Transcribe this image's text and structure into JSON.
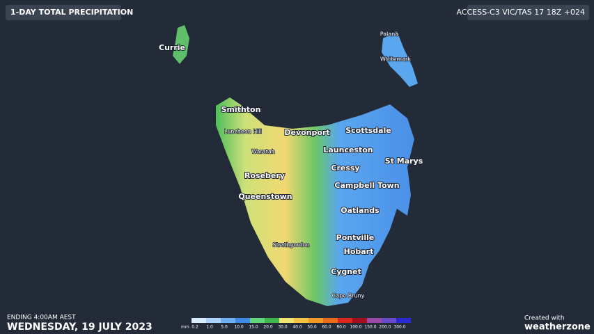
{
  "header": {
    "title": "1-DAY TOTAL PRECIPITATION",
    "model": "ACCESS-C3 VIC/TAS 17 18Z +024"
  },
  "places": [
    {
      "label": "Currie",
      "kind": "major"
    },
    {
      "label": "Palana",
      "kind": "minor"
    },
    {
      "label": "Whitemark",
      "kind": "minor"
    },
    {
      "label": "Smithton",
      "kind": "major"
    },
    {
      "label": "Luncheon Hill",
      "kind": "minor"
    },
    {
      "label": "Devonport",
      "kind": "major"
    },
    {
      "label": "Scottsdale",
      "kind": "major"
    },
    {
      "label": "Waratah",
      "kind": "minor"
    },
    {
      "label": "Launceston",
      "kind": "major"
    },
    {
      "label": "St Marys",
      "kind": "major"
    },
    {
      "label": "Cressy",
      "kind": "major"
    },
    {
      "label": "Rosebery",
      "kind": "major"
    },
    {
      "label": "Campbell Town",
      "kind": "major"
    },
    {
      "label": "Queenstown",
      "kind": "major"
    },
    {
      "label": "Oatlands",
      "kind": "major"
    },
    {
      "label": "Strathgordon",
      "kind": "minor"
    },
    {
      "label": "Pontville",
      "kind": "major"
    },
    {
      "label": "Hobart",
      "kind": "major"
    },
    {
      "label": "Cygnet",
      "kind": "major"
    },
    {
      "label": "Cape Bruny",
      "kind": "minor"
    }
  ],
  "legend": {
    "unit": "mm",
    "items": [
      {
        "label": "0.2",
        "color": "#d8ecff"
      },
      {
        "label": "1.0",
        "color": "#a9d4ff"
      },
      {
        "label": "5.0",
        "color": "#6fb0f5"
      },
      {
        "label": "10.0",
        "color": "#3f8ae8"
      },
      {
        "label": "15.0",
        "color": "#62d67a"
      },
      {
        "label": "20.0",
        "color": "#3fb64a"
      },
      {
        "label": "30.0",
        "color": "#f3e472"
      },
      {
        "label": "40.0",
        "color": "#f5c244"
      },
      {
        "label": "50.0",
        "color": "#f29a25"
      },
      {
        "label": "60.0",
        "color": "#ea6a1c"
      },
      {
        "label": "80.0",
        "color": "#d8281c"
      },
      {
        "label": "100.0",
        "color": "#a3101c"
      },
      {
        "label": "150.0",
        "color": "#9b4aa8"
      },
      {
        "label": "200.0",
        "color": "#6a4ac8"
      },
      {
        "label": "300.0",
        "color": "#2a2ad0"
      }
    ]
  },
  "footer": {
    "ending": "ENDING 4:00AM AEST",
    "date": "WEDNESDAY, 19 JULY 2023",
    "created": "Created with",
    "brand": "weatherzone"
  }
}
